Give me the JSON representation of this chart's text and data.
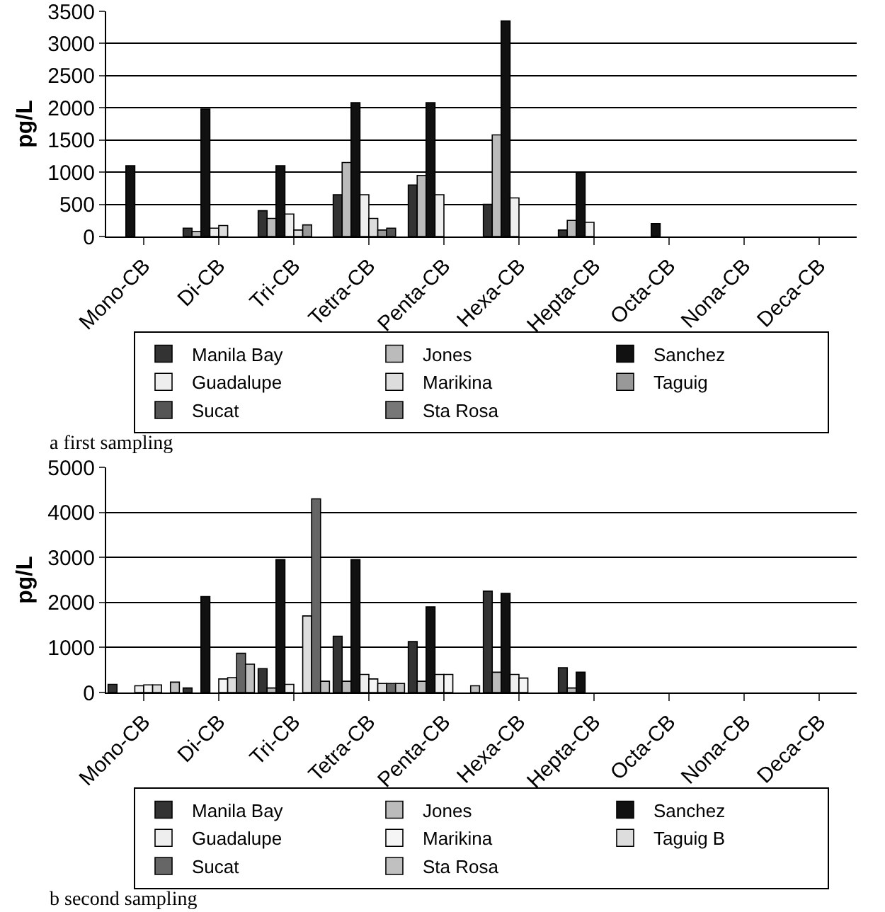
{
  "chart_data": [
    {
      "type": "bar",
      "ylabel": "pg/L",
      "categories": [
        "Mono-CB",
        "Di-CB",
        "Tri-CB",
        "Tetra-CB",
        "Penta-CB",
        "Hexa-CB",
        "Hepta-CB",
        "Octa-CB",
        "Nona-CB",
        "Deca-CB"
      ],
      "ylim": [
        0,
        3500
      ],
      "yticks": [
        0,
        500,
        1000,
        1500,
        2000,
        2500,
        3000,
        3500
      ],
      "grid": "y",
      "legend": "bottom",
      "annotations": [
        "a first sampling"
      ],
      "series": [
        {
          "name": "Manila Bay",
          "color": "#333333",
          "values": [
            null,
            130,
            400,
            650,
            800,
            500,
            100,
            null,
            null,
            null
          ]
        },
        {
          "name": "Jones",
          "color": "#bbbbbb",
          "values": [
            null,
            80,
            280,
            1150,
            950,
            1580,
            250,
            null,
            null,
            null
          ]
        },
        {
          "name": "Sanchez",
          "color": "#111111",
          "values": [
            1100,
            1980,
            1100,
            2080,
            2080,
            3350,
            1000,
            200,
            null,
            null
          ]
        },
        {
          "name": "Guadalupe",
          "color": "#eeeeee",
          "values": [
            null,
            130,
            350,
            650,
            650,
            600,
            220,
            null,
            null,
            null
          ]
        },
        {
          "name": "Marikina",
          "color": "#dddddd",
          "values": [
            null,
            170,
            100,
            280,
            null,
            null,
            null,
            null,
            null,
            null
          ]
        },
        {
          "name": "Taguig",
          "color": "#999999",
          "values": [
            null,
            null,
            180,
            100,
            null,
            null,
            null,
            null,
            null,
            null
          ]
        },
        {
          "name": "Sucat",
          "color": "#555555",
          "values": [
            null,
            null,
            null,
            130,
            null,
            null,
            null,
            null,
            null,
            null
          ]
        },
        {
          "name": "Sta Rosa",
          "color": "#777777",
          "values": [
            null,
            null,
            null,
            null,
            null,
            null,
            null,
            null,
            null,
            null
          ]
        }
      ]
    },
    {
      "type": "bar",
      "ylabel": "pg/L",
      "categories": [
        "Mono-CB",
        "Di-CB",
        "Tri-CB",
        "Tetra-CB",
        "Penta-CB",
        "Hexa-CB",
        "Hepta-CB",
        "Octa-CB",
        "Nona-CB",
        "Deca-CB"
      ],
      "ylim": [
        0,
        5000
      ],
      "yticks": [
        0,
        1000,
        2000,
        3000,
        4000,
        5000
      ],
      "grid": "y",
      "legend": "bottom",
      "annotations": [
        "b second sampling"
      ],
      "series": [
        {
          "name": "Manila Bay",
          "color": "#333333",
          "values": [
            180,
            100,
            530,
            1250,
            1130,
            2250,
            550,
            null,
            null,
            null
          ]
        },
        {
          "name": "Jones",
          "color": "#bbbbbb",
          "values": [
            null,
            null,
            100,
            250,
            250,
            450,
            100,
            null,
            null,
            null
          ]
        },
        {
          "name": "Sanchez",
          "color": "#111111",
          "values": [
            null,
            2130,
            2950,
            2950,
            1900,
            2200,
            450,
            null,
            null,
            null
          ]
        },
        {
          "name": "Guadalupe",
          "color": "#eeeeee",
          "values": [
            150,
            null,
            180,
            400,
            400,
            400,
            null,
            null,
            null,
            null
          ]
        },
        {
          "name": "Marikina",
          "color": "#f5f5f5",
          "values": [
            170,
            300,
            null,
            300,
            400,
            320,
            null,
            null,
            null,
            null
          ]
        },
        {
          "name": "Taguig B",
          "color": "#dddddd",
          "values": [
            170,
            330,
            1700,
            200,
            null,
            null,
            null,
            null,
            null,
            null
          ]
        },
        {
          "name": "Sucat",
          "color": "#666666",
          "values": [
            null,
            870,
            4300,
            200,
            null,
            null,
            null,
            null,
            null,
            null
          ]
        },
        {
          "name": "Sta Rosa",
          "color": "#c0c0c0",
          "values": [
            230,
            630,
            250,
            200,
            150,
            null,
            null,
            null,
            null,
            null
          ]
        }
      ]
    }
  ]
}
